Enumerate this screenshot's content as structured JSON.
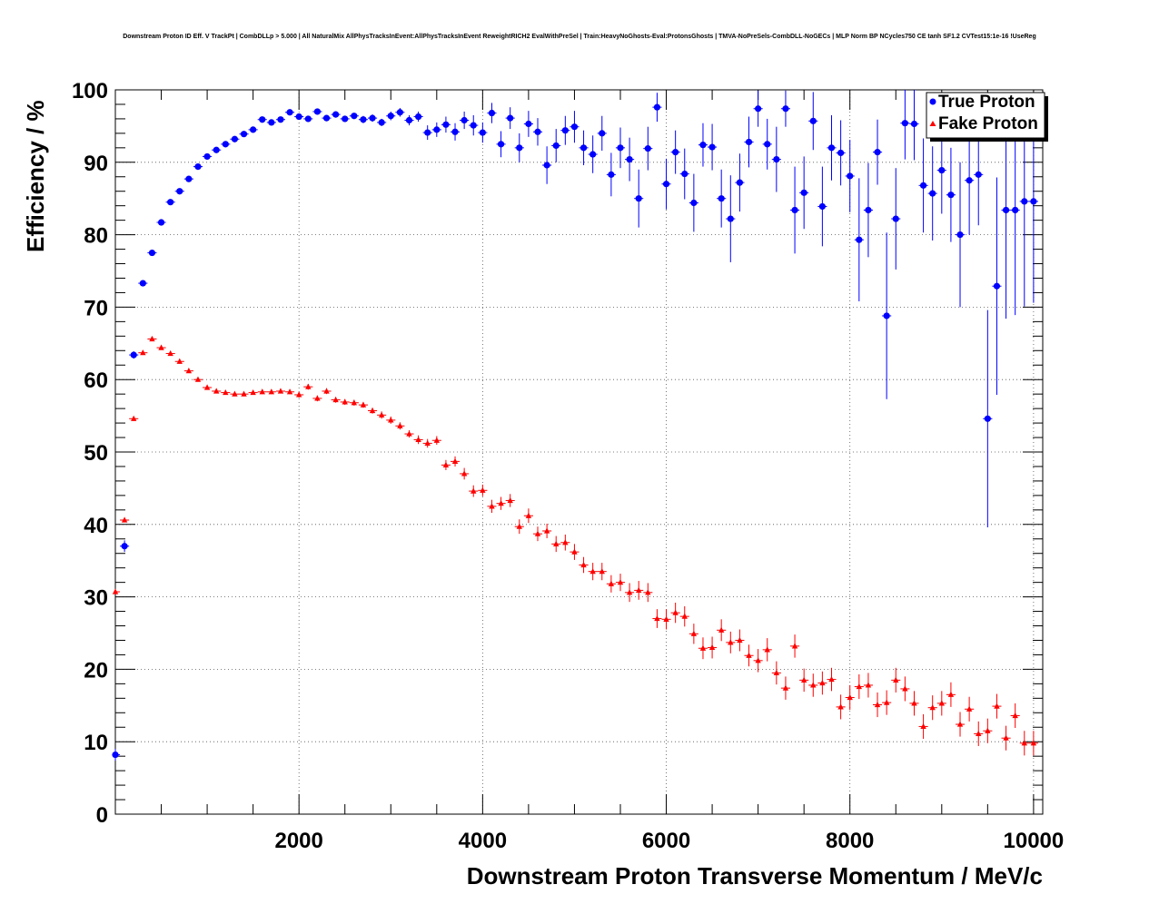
{
  "chart_data": {
    "type": "scatter",
    "title": "Downstream Proton ID Eff. V TrackPt | CombDLLp > 5.000 | All NaturalMix AllPhysTracksInEvent:AllPhysTracksInEvent ReweightRICH2 EvalWithPreSel | Train:HeavyNoGhosts-Eval:ProtonsGhosts | TMVA-NoPreSels-CombDLL-NoGECs | MLP Norm BP NCycles750 CE tanh SF1.2 CVTest15:1e-16 !UseReg",
    "xlabel": "Downstream Proton Transverse Momentum / MeV/c",
    "ylabel": "Efficiency / %",
    "xlim": [
      0,
      10100
    ],
    "ylim": [
      0,
      100
    ],
    "x_ticks": [
      2000,
      4000,
      6000,
      8000,
      10000
    ],
    "x_tick_labels": [
      "2000",
      "4000",
      "6000",
      "8000",
      "10000"
    ],
    "y_ticks": [
      0,
      10,
      20,
      30,
      40,
      50,
      60,
      70,
      80,
      90,
      100
    ],
    "y_tick_labels": [
      "0",
      "10",
      "20",
      "30",
      "40",
      "50",
      "60",
      "70",
      "80",
      "90",
      "100"
    ],
    "grid": true,
    "legend_position": "top-right",
    "bin_half_width": 50,
    "series": [
      {
        "name": "True Proton",
        "marker": "circle",
        "color": "#0000ff",
        "x": [
          0,
          100,
          200,
          300,
          400,
          500,
          600,
          700,
          800,
          900,
          1000,
          1100,
          1200,
          1300,
          1400,
          1500,
          1600,
          1700,
          1800,
          1900,
          2000,
          2100,
          2200,
          2300,
          2400,
          2500,
          2600,
          2700,
          2800,
          2900,
          3000,
          3100,
          3200,
          3300,
          3400,
          3500,
          3600,
          3700,
          3800,
          3900,
          4000,
          4100,
          4200,
          4300,
          4400,
          4500,
          4600,
          4700,
          4800,
          4900,
          5000,
          5100,
          5200,
          5300,
          5400,
          5500,
          5600,
          5700,
          5800,
          5900,
          6000,
          6100,
          6200,
          6300,
          6400,
          6500,
          6600,
          6700,
          6800,
          6900,
          7000,
          7100,
          7200,
          7300,
          7400,
          7500,
          7600,
          7700,
          7800,
          7900,
          8000,
          8100,
          8200,
          8300,
          8400,
          8500,
          8600,
          8700,
          8800,
          8900,
          9000,
          9100,
          9200,
          9300,
          9400,
          9500,
          9600,
          9700,
          9800,
          9900,
          10000
        ],
        "values": [
          8.2,
          37.0,
          63.4,
          73.3,
          77.5,
          81.7,
          84.5,
          86.0,
          87.7,
          89.4,
          90.8,
          91.7,
          92.5,
          93.2,
          93.9,
          94.5,
          95.9,
          95.5,
          95.9,
          96.9,
          96.3,
          96.0,
          97.0,
          96.1,
          96.6,
          96.0,
          96.4,
          95.9,
          96.1,
          95.5,
          96.4,
          96.9,
          95.8,
          96.3,
          94.1,
          94.5,
          95.2,
          94.2,
          95.8,
          95.1,
          94.1,
          96.8,
          92.5,
          96.1,
          92.0,
          95.3,
          94.2,
          89.6,
          92.3,
          94.4,
          94.9,
          92.0,
          91.1,
          94.0,
          88.3,
          92.0,
          90.4,
          85.0,
          91.9,
          97.6,
          87.0,
          91.4,
          88.4,
          84.4,
          92.4,
          92.1,
          85.0,
          82.2,
          87.2,
          92.8,
          97.4,
          92.5,
          90.4,
          97.4,
          83.4,
          85.8,
          95.7,
          83.9,
          92.0,
          91.3,
          88.1,
          79.3,
          83.4,
          91.4,
          68.8,
          82.2,
          95.4,
          95.3,
          86.8,
          85.7,
          88.9,
          85.5,
          80.0,
          87.5,
          88.3,
          54.6,
          72.9,
          83.4,
          83.4,
          84.6,
          84.6
        ],
        "errors": [
          0.8,
          0.8,
          0.5,
          0.4,
          0.4,
          0.3,
          0.3,
          0.3,
          0.3,
          0.3,
          0.3,
          0.3,
          0.3,
          0.3,
          0.3,
          0.3,
          0.3,
          0.3,
          0.3,
          0.3,
          0.4,
          0.4,
          0.4,
          0.4,
          0.4,
          0.4,
          0.4,
          0.5,
          0.5,
          0.5,
          0.6,
          0.6,
          0.7,
          0.7,
          1.0,
          1.0,
          1.1,
          1.2,
          1.2,
          1.4,
          1.4,
          1.4,
          1.8,
          1.5,
          2.0,
          1.8,
          1.9,
          2.6,
          2.3,
          2.0,
          2.2,
          2.4,
          2.6,
          2.4,
          3.0,
          2.8,
          3.0,
          4.0,
          3.0,
          2.0,
          3.5,
          3.0,
          3.5,
          4.0,
          3.0,
          3.2,
          4.0,
          6.0,
          4.0,
          3.5,
          2.5,
          3.5,
          4.5,
          2.5,
          6.0,
          5.0,
          4.0,
          5.5,
          4.5,
          4.5,
          5.0,
          8.5,
          6.5,
          4.5,
          11.5,
          7.0,
          5.0,
          5.0,
          6.5,
          6.5,
          6.0,
          6.5,
          10.0,
          7.5,
          7.0,
          15.0,
          15.0,
          15.0,
          14.5,
          14.5,
          14.0
        ]
      },
      {
        "name": "Fake Proton",
        "marker": "triangle",
        "color": "#ff0000",
        "x": [
          0,
          100,
          200,
          300,
          400,
          500,
          600,
          700,
          800,
          900,
          1000,
          1100,
          1200,
          1300,
          1400,
          1500,
          1600,
          1700,
          1800,
          1900,
          2000,
          2100,
          2200,
          2300,
          2400,
          2500,
          2600,
          2700,
          2800,
          2900,
          3000,
          3100,
          3200,
          3300,
          3400,
          3500,
          3600,
          3700,
          3800,
          3900,
          4000,
          4100,
          4200,
          4300,
          4400,
          4500,
          4600,
          4700,
          4800,
          4900,
          5000,
          5100,
          5200,
          5300,
          5400,
          5500,
          5600,
          5700,
          5800,
          5900,
          6000,
          6100,
          6200,
          6300,
          6400,
          6500,
          6600,
          6700,
          6800,
          6900,
          7000,
          7100,
          7200,
          7300,
          7400,
          7500,
          7600,
          7700,
          7800,
          7900,
          8000,
          8100,
          8200,
          8300,
          8400,
          8500,
          8600,
          8700,
          8800,
          8900,
          9000,
          9100,
          9200,
          9300,
          9400,
          9500,
          9600,
          9700,
          9800,
          9900,
          10000
        ],
        "values": [
          30.7,
          40.6,
          54.6,
          63.7,
          65.6,
          64.4,
          63.6,
          62.5,
          61.2,
          60.0,
          58.9,
          58.4,
          58.2,
          58.0,
          58.0,
          58.2,
          58.3,
          58.3,
          58.4,
          58.3,
          57.9,
          59.0,
          57.4,
          58.4,
          57.2,
          56.9,
          56.8,
          56.5,
          55.7,
          55.1,
          54.4,
          53.6,
          52.5,
          51.7,
          51.2,
          51.6,
          48.2,
          48.7,
          47.0,
          44.6,
          44.7,
          42.5,
          42.9,
          43.3,
          39.7,
          41.2,
          38.7,
          39.1,
          37.3,
          37.5,
          36.2,
          34.4,
          33.5,
          33.5,
          31.8,
          32.0,
          30.6,
          30.9,
          30.6,
          27.0,
          26.9,
          27.8,
          27.3,
          24.9,
          22.9,
          23.0,
          25.4,
          23.7,
          24.0,
          21.9,
          21.2,
          22.7,
          19.5,
          17.4,
          23.2,
          18.5,
          17.8,
          18.1,
          18.6,
          14.8,
          16.1,
          17.6,
          17.8,
          15.1,
          15.4,
          18.5,
          17.3,
          15.3,
          12.1,
          14.7,
          15.3,
          16.5,
          12.4,
          14.5,
          11.1,
          11.5,
          14.9,
          10.5,
          13.6,
          9.8,
          9.8
        ],
        "errors": [
          0.3,
          0.3,
          0.3,
          0.3,
          0.3,
          0.3,
          0.3,
          0.3,
          0.3,
          0.3,
          0.3,
          0.3,
          0.3,
          0.3,
          0.3,
          0.3,
          0.3,
          0.3,
          0.3,
          0.3,
          0.4,
          0.4,
          0.4,
          0.4,
          0.4,
          0.4,
          0.4,
          0.4,
          0.4,
          0.5,
          0.5,
          0.5,
          0.5,
          0.6,
          0.6,
          0.6,
          0.7,
          0.7,
          0.8,
          0.8,
          0.8,
          0.9,
          0.9,
          0.9,
          1.0,
          1.0,
          1.0,
          1.0,
          1.1,
          1.1,
          1.1,
          1.1,
          1.2,
          1.2,
          1.2,
          1.2,
          1.3,
          1.3,
          1.3,
          1.3,
          1.4,
          1.4,
          1.4,
          1.4,
          1.5,
          1.5,
          1.5,
          1.5,
          1.5,
          1.5,
          1.6,
          1.6,
          1.6,
          1.6,
          1.6,
          1.6,
          1.6,
          1.6,
          1.6,
          1.7,
          1.7,
          1.7,
          1.7,
          1.7,
          1.7,
          1.7,
          1.7,
          1.7,
          1.7,
          1.7,
          1.7,
          1.7,
          1.7,
          1.7,
          1.7,
          1.7,
          1.7,
          1.7,
          1.7,
          1.7,
          1.7
        ]
      }
    ]
  }
}
